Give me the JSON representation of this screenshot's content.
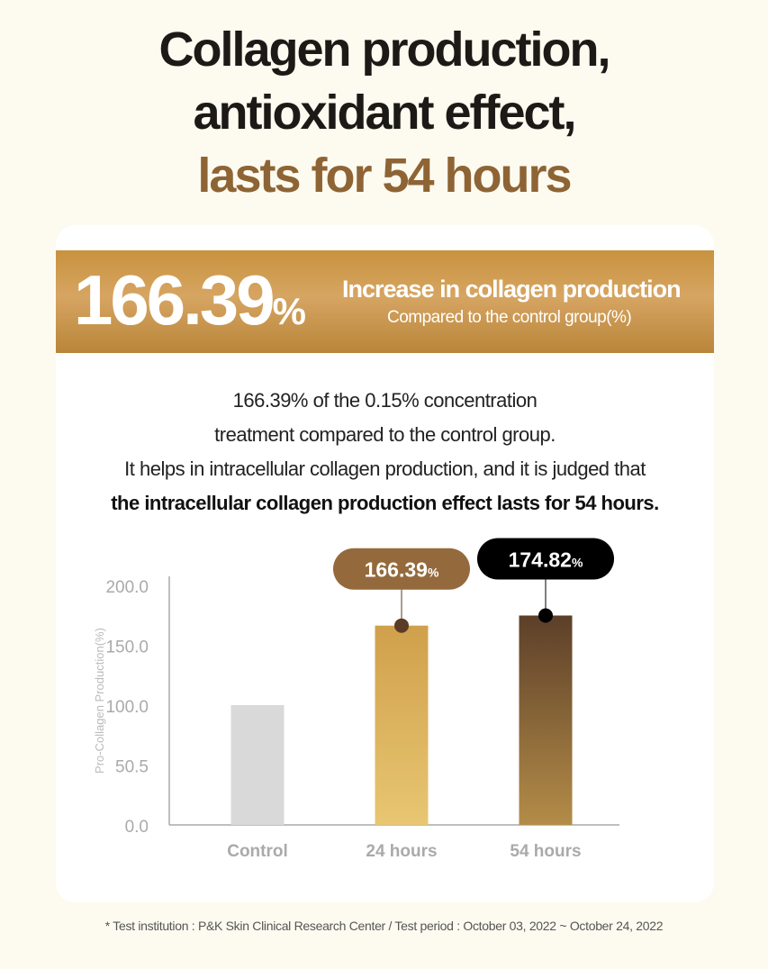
{
  "headline": {
    "line1": "Collagen production,",
    "line2": "antioxidant effect,",
    "line3": "lasts for 54 hours"
  },
  "banner": {
    "value": "166.39",
    "unit": "%",
    "heading": "Increase in collagen production",
    "sub": "Compared to the control group(%)"
  },
  "description": {
    "line1": "166.39% of the 0.15% concentration",
    "line2": "treatment compared to the control group.",
    "line3": "It helps in intracellular collagen production, and it is judged that",
    "line4_bold": "the intracellular collagen production effect lasts for 54 hours."
  },
  "chart_data": {
    "type": "bar",
    "categories": [
      "Control",
      "24 hours",
      "54 hours"
    ],
    "values": [
      100,
      166.39,
      174.82
    ],
    "ylabel": "Pro-Collagen Production(%)",
    "yticks": [
      "0.0",
      "50.5",
      "100.0",
      "150.0",
      "200.0"
    ],
    "ylim": [
      0,
      200
    ],
    "data_labels": [
      {
        "category": "24 hours",
        "value": "166.39",
        "unit": "%"
      },
      {
        "category": "54 hours",
        "value": "174.82",
        "unit": "%"
      }
    ],
    "colors": {
      "Control": "#d9d9d9",
      "24 hours": "#d4a552",
      "54 hours": "#5e4229",
      "label24": "#946a3d",
      "label54": "#000000"
    },
    "grid": false
  },
  "footnote": "* Test institution : P&K Skin Clinical Research Center / Test period : October 03, 2022 ~ October 24, 2022"
}
